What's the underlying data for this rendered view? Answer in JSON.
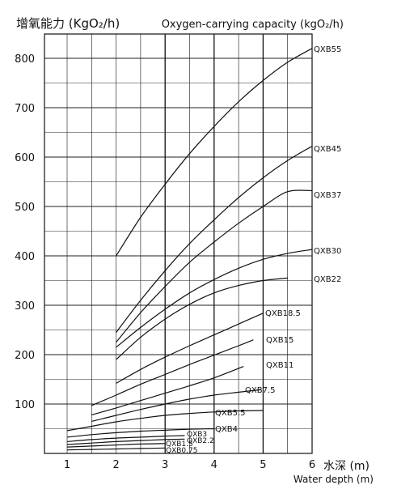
{
  "chart_data": {
    "type": "line",
    "ylabel": "增氧能力 (KgO₂/h)",
    "title": "Oxygen-carrying capacity (kgO₂/h)",
    "xlabel_cn": "水深 (m)",
    "xlabel_en": "Water depth (m)",
    "xlim": [
      0.5,
      6
    ],
    "ylim": [
      0,
      830
    ],
    "x_ticks": [
      1,
      2,
      3,
      4,
      5,
      6
    ],
    "y_ticks": [
      100,
      200,
      300,
      400,
      500,
      600,
      700,
      800
    ],
    "grid": true,
    "series": [
      {
        "name": "QXB55",
        "x": [
          2,
          2.5,
          3,
          3.5,
          4,
          4.5,
          5,
          5.5,
          6
        ],
        "y": [
          400,
          478,
          545,
          607,
          662,
          712,
          755,
          792,
          820
        ]
      },
      {
        "name": "QXB45",
        "x": [
          2,
          2.5,
          3,
          3.5,
          4,
          4.5,
          5,
          5.5,
          6
        ],
        "y": [
          245,
          310,
          370,
          425,
          473,
          518,
          558,
          593,
          622
        ]
      },
      {
        "name": "QXB37",
        "x": [
          2,
          2.5,
          3,
          3.5,
          4,
          4.5,
          5,
          5.5,
          6
        ],
        "y": [
          225,
          285,
          338,
          387,
          428,
          466,
          500,
          530,
          532
        ]
      },
      {
        "name": "QXB30",
        "x": [
          2,
          2.5,
          3,
          3.5,
          4,
          4.5,
          5,
          5.5,
          6
        ],
        "y": [
          215,
          255,
          292,
          325,
          352,
          375,
          393,
          405,
          413
        ]
      },
      {
        "name": "QXB22",
        "x": [
          2,
          2.5,
          3,
          3.5,
          4,
          4.5,
          5,
          5.5
        ],
        "y": [
          190,
          235,
          272,
          302,
          325,
          340,
          350,
          355
        ]
      },
      {
        "name": "QXB18.5",
        "x": [
          2,
          2.5,
          3,
          3.5,
          4,
          4.5,
          5
        ],
        "y": [
          142,
          170,
          195,
          218,
          240,
          262,
          284
        ]
      },
      {
        "name": "QXB15",
        "x": [
          1.5,
          2,
          2.5,
          3,
          3.5,
          4,
          4.5,
          4.8
        ],
        "y": [
          97,
          118,
          140,
          160,
          180,
          199,
          218,
          230
        ]
      },
      {
        "name": "QXB11",
        "x": [
          1.5,
          2,
          2.5,
          3,
          3.5,
          4,
          4.6
        ],
        "y": [
          78,
          92,
          107,
          122,
          137,
          153,
          176
        ]
      },
      {
        "name": "QXB7.5",
        "x": [
          1.5,
          2,
          2.5,
          3,
          3.5,
          4,
          4.5,
          4.95
        ],
        "y": [
          65,
          77,
          89,
          100,
          110,
          118,
          124,
          129
        ]
      },
      {
        "name": "QXB5.5",
        "x": [
          1,
          1.5,
          2,
          2.5,
          3,
          3.5,
          4,
          4.5,
          5
        ],
        "y": [
          46,
          55,
          64,
          71,
          77,
          81,
          84,
          86,
          87
        ]
      },
      {
        "name": "QXB4",
        "x": [
          1,
          1.5,
          2,
          2.5,
          3,
          3.5,
          4
        ],
        "y": [
          33,
          38,
          42,
          45,
          47,
          49,
          50
        ]
      },
      {
        "name": "QXB3",
        "x": [
          1,
          1.5,
          2,
          2.5,
          3,
          3.4
        ],
        "y": [
          24,
          28,
          31,
          33,
          35,
          36
        ]
      },
      {
        "name": "QXB2.2",
        "x": [
          1,
          1.5,
          2,
          2.5,
          3,
          3.4
        ],
        "y": [
          18,
          21,
          24,
          26,
          28,
          29
        ]
      },
      {
        "name": "QXB1.5",
        "x": [
          1,
          1.5,
          2,
          2.5,
          3
        ],
        "y": [
          13,
          15,
          17,
          19,
          20
        ]
      },
      {
        "name": "QXB0.75",
        "x": [
          1,
          1.5,
          2,
          2.5,
          3
        ],
        "y": [
          7,
          8,
          9,
          10,
          11
        ]
      }
    ]
  }
}
